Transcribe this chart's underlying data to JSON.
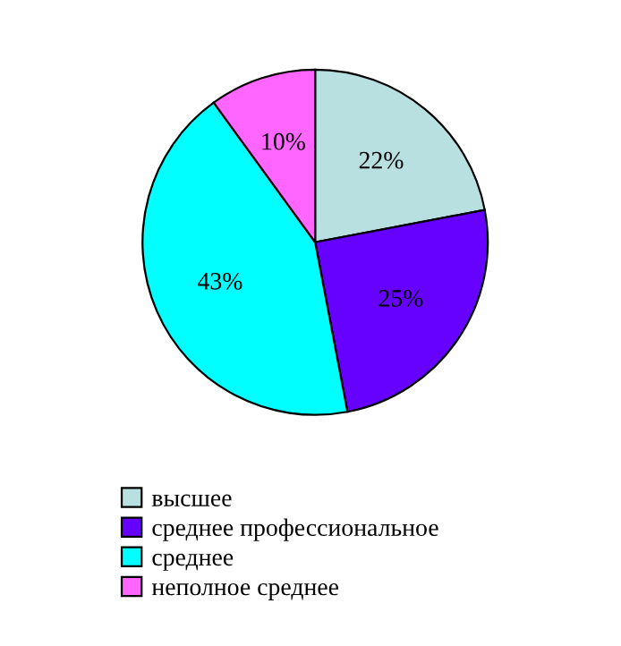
{
  "chart_data": {
    "type": "pie",
    "categories": [
      "высшее",
      "среднее профессиональное",
      "среднее",
      "неполное среднее"
    ],
    "values": [
      22,
      25,
      43,
      10
    ],
    "colors": [
      "#b8e0e0",
      "#6600ff",
      "#00ffff",
      "#ff66ff"
    ],
    "value_labels": [
      "22%",
      "25%",
      "43%",
      "10%"
    ],
    "legend": "bottom"
  }
}
